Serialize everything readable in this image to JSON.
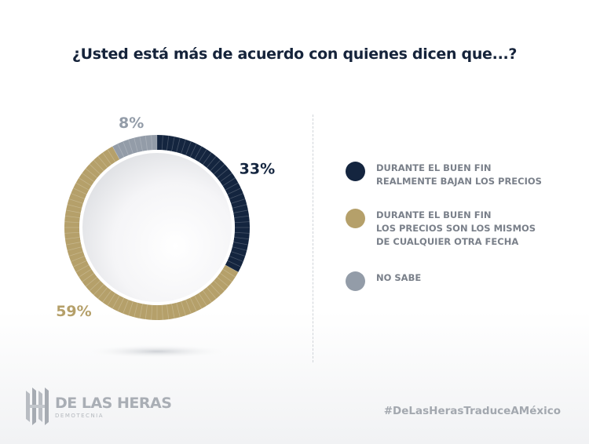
{
  "title": "¿Usted está más de acuerdo con quienes dicen que...?",
  "chart_data": {
    "type": "pie",
    "style": "donut",
    "slices": [
      {
        "label": "DURANTE EL BUEN FIN\nREALMENTE BAJAN LOS PRECIOS",
        "value": 33,
        "display": "33%",
        "color": "#14253f"
      },
      {
        "label": "DURANTE EL BUEN FIN\nLOS PRECIOS SON LOS MISMOS\nDE CUALQUIER OTRA FECHA",
        "value": 59,
        "display": "59%",
        "color": "#b5a06a"
      },
      {
        "label": "NO SABE",
        "value": 8,
        "display": "8%",
        "color": "#939ca8"
      }
    ],
    "legend_position": "right"
  },
  "branding": {
    "logo_name": "DE LAS HERAS",
    "logo_sub": "DEMOTECNIA",
    "hashtag": "#DeLasHerasTraduceAMéxico"
  }
}
